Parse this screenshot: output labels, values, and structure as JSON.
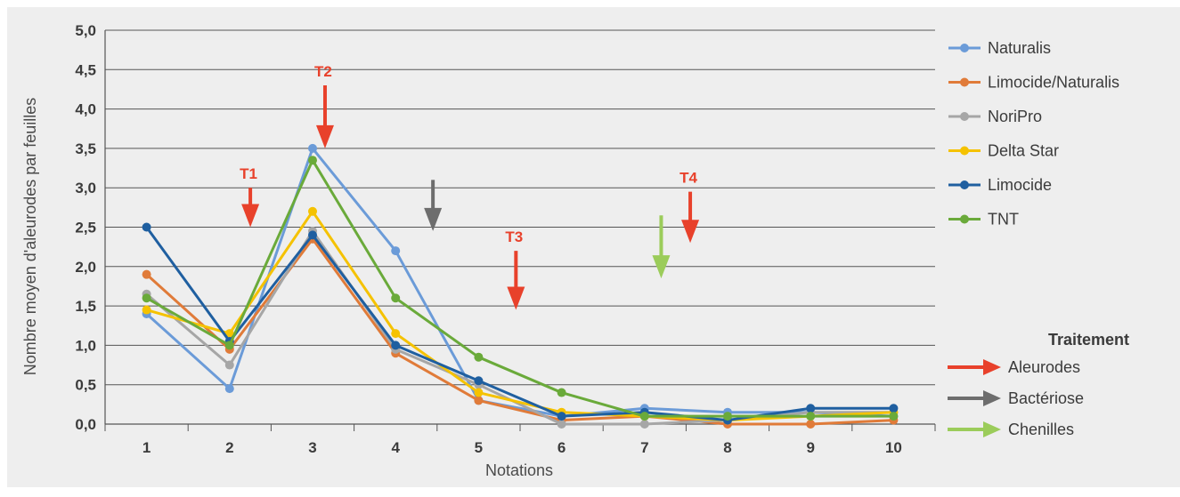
{
  "chart_data": {
    "type": "line",
    "xlabel": "Notations",
    "ylabel": "Nombre moyen d'aleurodes par feuilles",
    "x": [
      1,
      2,
      3,
      4,
      5,
      6,
      7,
      8,
      9,
      10
    ],
    "x_tick_labels": [
      "1",
      "2",
      "3",
      "4",
      "5",
      "6",
      "7",
      "8",
      "9",
      "10"
    ],
    "ylim": [
      0,
      5
    ],
    "y_tick_labels": [
      "0,0",
      "0,5",
      "1,0",
      "1,5",
      "2,0",
      "2,5",
      "3,0",
      "3,5",
      "4,0",
      "4,5",
      "5,0"
    ],
    "grid": "horizontal",
    "legend_placement": "right",
    "series": [
      {
        "name": "Naturalis",
        "color": "#6b9bd8",
        "values": [
          1.4,
          0.45,
          3.5,
          2.2,
          0.3,
          0.1,
          0.2,
          0.15,
          0.15,
          0.1
        ]
      },
      {
        "name": "Limocide/Naturalis",
        "color": "#e07b39",
        "values": [
          1.9,
          0.95,
          2.35,
          0.9,
          0.3,
          0.05,
          0.1,
          0.0,
          0.0,
          0.05
        ]
      },
      {
        "name": "NoriPro",
        "color": "#a6a6a6",
        "values": [
          1.65,
          0.75,
          2.45,
          0.95,
          0.5,
          0.0,
          0.0,
          0.05,
          0.15,
          0.15
        ]
      },
      {
        "name": "Delta Star",
        "color": "#f5c200",
        "values": [
          1.45,
          1.15,
          2.7,
          1.15,
          0.4,
          0.15,
          0.1,
          0.05,
          0.1,
          0.15
        ]
      },
      {
        "name": "Limocide",
        "color": "#1f5fa0",
        "values": [
          2.5,
          1.05,
          2.4,
          1.0,
          0.55,
          0.1,
          0.15,
          0.05,
          0.2,
          0.2
        ]
      },
      {
        "name": "TNT",
        "color": "#6aaa3a",
        "values": [
          1.6,
          1.0,
          3.35,
          1.6,
          0.85,
          0.4,
          0.1,
          0.1,
          0.1,
          0.1
        ]
      }
    ],
    "treatment_legend": {
      "title": "Traitement",
      "items": [
        {
          "label": "Aleurodes",
          "color": "#e8412b"
        },
        {
          "label": "Bactériose",
          "color": "#6d6d6d"
        },
        {
          "label": "Chenilles",
          "color": "#9bcc5a"
        }
      ]
    },
    "annotations": [
      {
        "label": "T1",
        "type": "Aleurodes",
        "x": 2.25,
        "y_top": 3.0,
        "y_bottom": 2.5
      },
      {
        "label": "T2",
        "type": "Aleurodes",
        "x": 3.15,
        "y_top": 4.3,
        "y_bottom": 3.5
      },
      {
        "label": "",
        "type": "Bactériose",
        "x": 4.45,
        "y_top": 3.1,
        "y_bottom": 2.45
      },
      {
        "label": "T3",
        "type": "Aleurodes",
        "x": 5.45,
        "y_top": 2.2,
        "y_bottom": 1.45
      },
      {
        "label": "",
        "type": "Chenilles",
        "x": 7.2,
        "y_top": 2.65,
        "y_bottom": 1.85
      },
      {
        "label": "T4",
        "type": "Aleurodes",
        "x": 7.55,
        "y_top": 2.95,
        "y_bottom": 2.3
      }
    ]
  }
}
